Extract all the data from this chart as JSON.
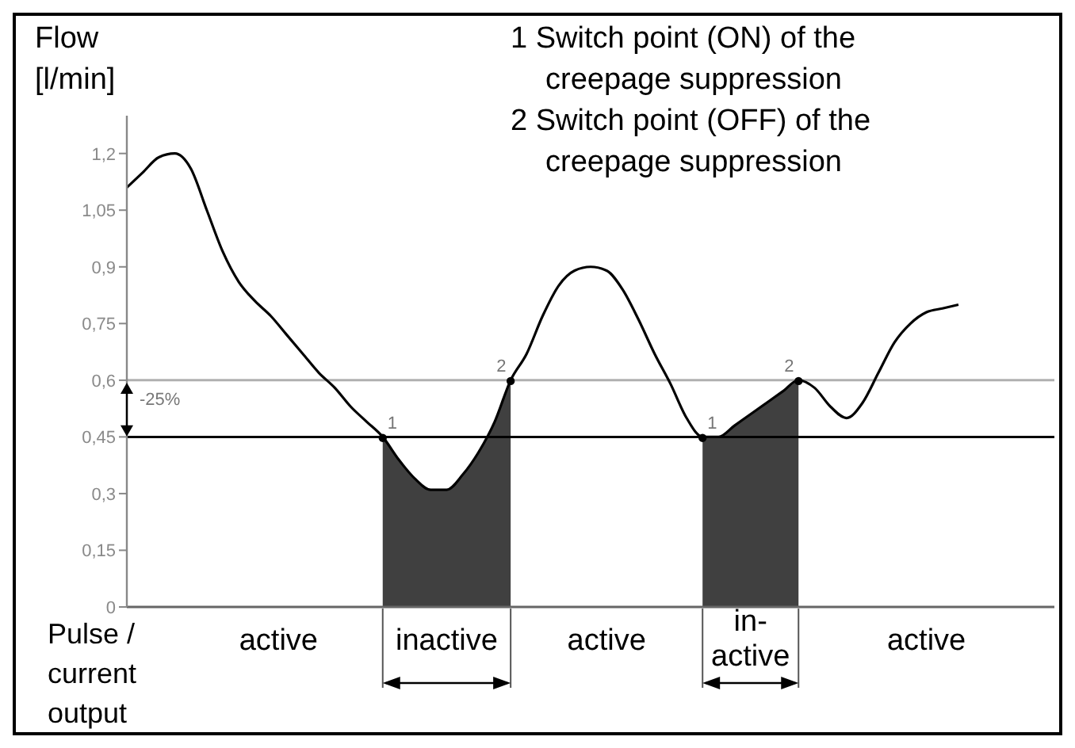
{
  "chart_data": {
    "type": "line",
    "ylabel": "Flow [l/min]",
    "categories": [
      null,
      null,
      null,
      null,
      null,
      null,
      null,
      null,
      null,
      null,
      null,
      null,
      null,
      null,
      null,
      null,
      null,
      null,
      null,
      null,
      null,
      null,
      null,
      null,
      null,
      null,
      null,
      null,
      null,
      null,
      null,
      null,
      null,
      null,
      null,
      null,
      null,
      null,
      null,
      null,
      null,
      null,
      null,
      null,
      null,
      null,
      null,
      null,
      null,
      null,
      null,
      null,
      null,
      null,
      null,
      null,
      null,
      null,
      null
    ],
    "series": [
      {
        "type": "area",
        "color": "#404040",
        "values": [
          null,
          null,
          null,
          null,
          null,
          null,
          null,
          null,
          null,
          null,
          null,
          null,
          null,
          null,
          null,
          null,
          0.45,
          0.39,
          0.34,
          0.31,
          0.31,
          0.35,
          0.41,
          0.49,
          0.6,
          null,
          null,
          null,
          null,
          null,
          null,
          null,
          null,
          null,
          null,
          null,
          0.45,
          0.45,
          0.48,
          0.51,
          0.54,
          0.57,
          0.6,
          null,
          null,
          null,
          null,
          null,
          null,
          null,
          null,
          null,
          null,
          null,
          null,
          null,
          null,
          null,
          null
        ]
      },
      {
        "type": "line",
        "color": "#000000",
        "values": [
          1.11,
          1.15,
          1.19,
          1.2,
          1.16,
          1.05,
          0.94,
          0.86,
          0.81,
          0.77,
          0.72,
          0.67,
          0.62,
          0.58,
          0.53,
          0.49,
          0.45,
          0.39,
          0.34,
          0.31,
          0.31,
          0.35,
          0.41,
          0.49,
          0.6,
          0.67,
          0.77,
          0.85,
          0.89,
          0.9,
          0.89,
          0.84,
          0.76,
          0.67,
          0.59,
          0.5,
          0.45,
          0.45,
          0.48,
          0.51,
          0.54,
          0.57,
          0.6,
          0.58,
          0.53,
          0.5,
          0.54,
          0.62,
          0.7,
          0.75,
          0.78,
          0.79,
          0.8,
          null,
          null,
          null,
          null,
          null,
          null
        ]
      }
    ],
    "ylim": [
      0,
      1.3
    ],
    "yticks": [
      {
        "value": 0,
        "label": "0"
      },
      {
        "value": 0.15,
        "label": "0,15"
      },
      {
        "value": 0.3,
        "label": "0,3"
      },
      {
        "value": 0.45,
        "label": "0,45"
      },
      {
        "value": 0.6,
        "label": "0,6"
      },
      {
        "value": 0.75,
        "label": "0,75"
      },
      {
        "value": 0.9,
        "label": "0,9"
      },
      {
        "value": 1.05,
        "label": "1,05"
      },
      {
        "value": 1.2,
        "label": "1,2"
      }
    ],
    "ref_lines": [
      {
        "axis": "y",
        "value": 0.6,
        "color": "#b0b0b0"
      },
      {
        "axis": "y",
        "value": 0.45,
        "color": "#000000"
      }
    ],
    "tick_labels": "y",
    "grid": false,
    "legend": false,
    "annotations": [
      "1",
      "2",
      "1",
      "2",
      "-25%",
      "1 Switch point (ON) of the creepage suppression",
      "2 Switch point (OFF) of the creepage suppression",
      "Pulse / current output",
      "active",
      "inactive",
      "active",
      "in-active",
      "active"
    ]
  }
}
